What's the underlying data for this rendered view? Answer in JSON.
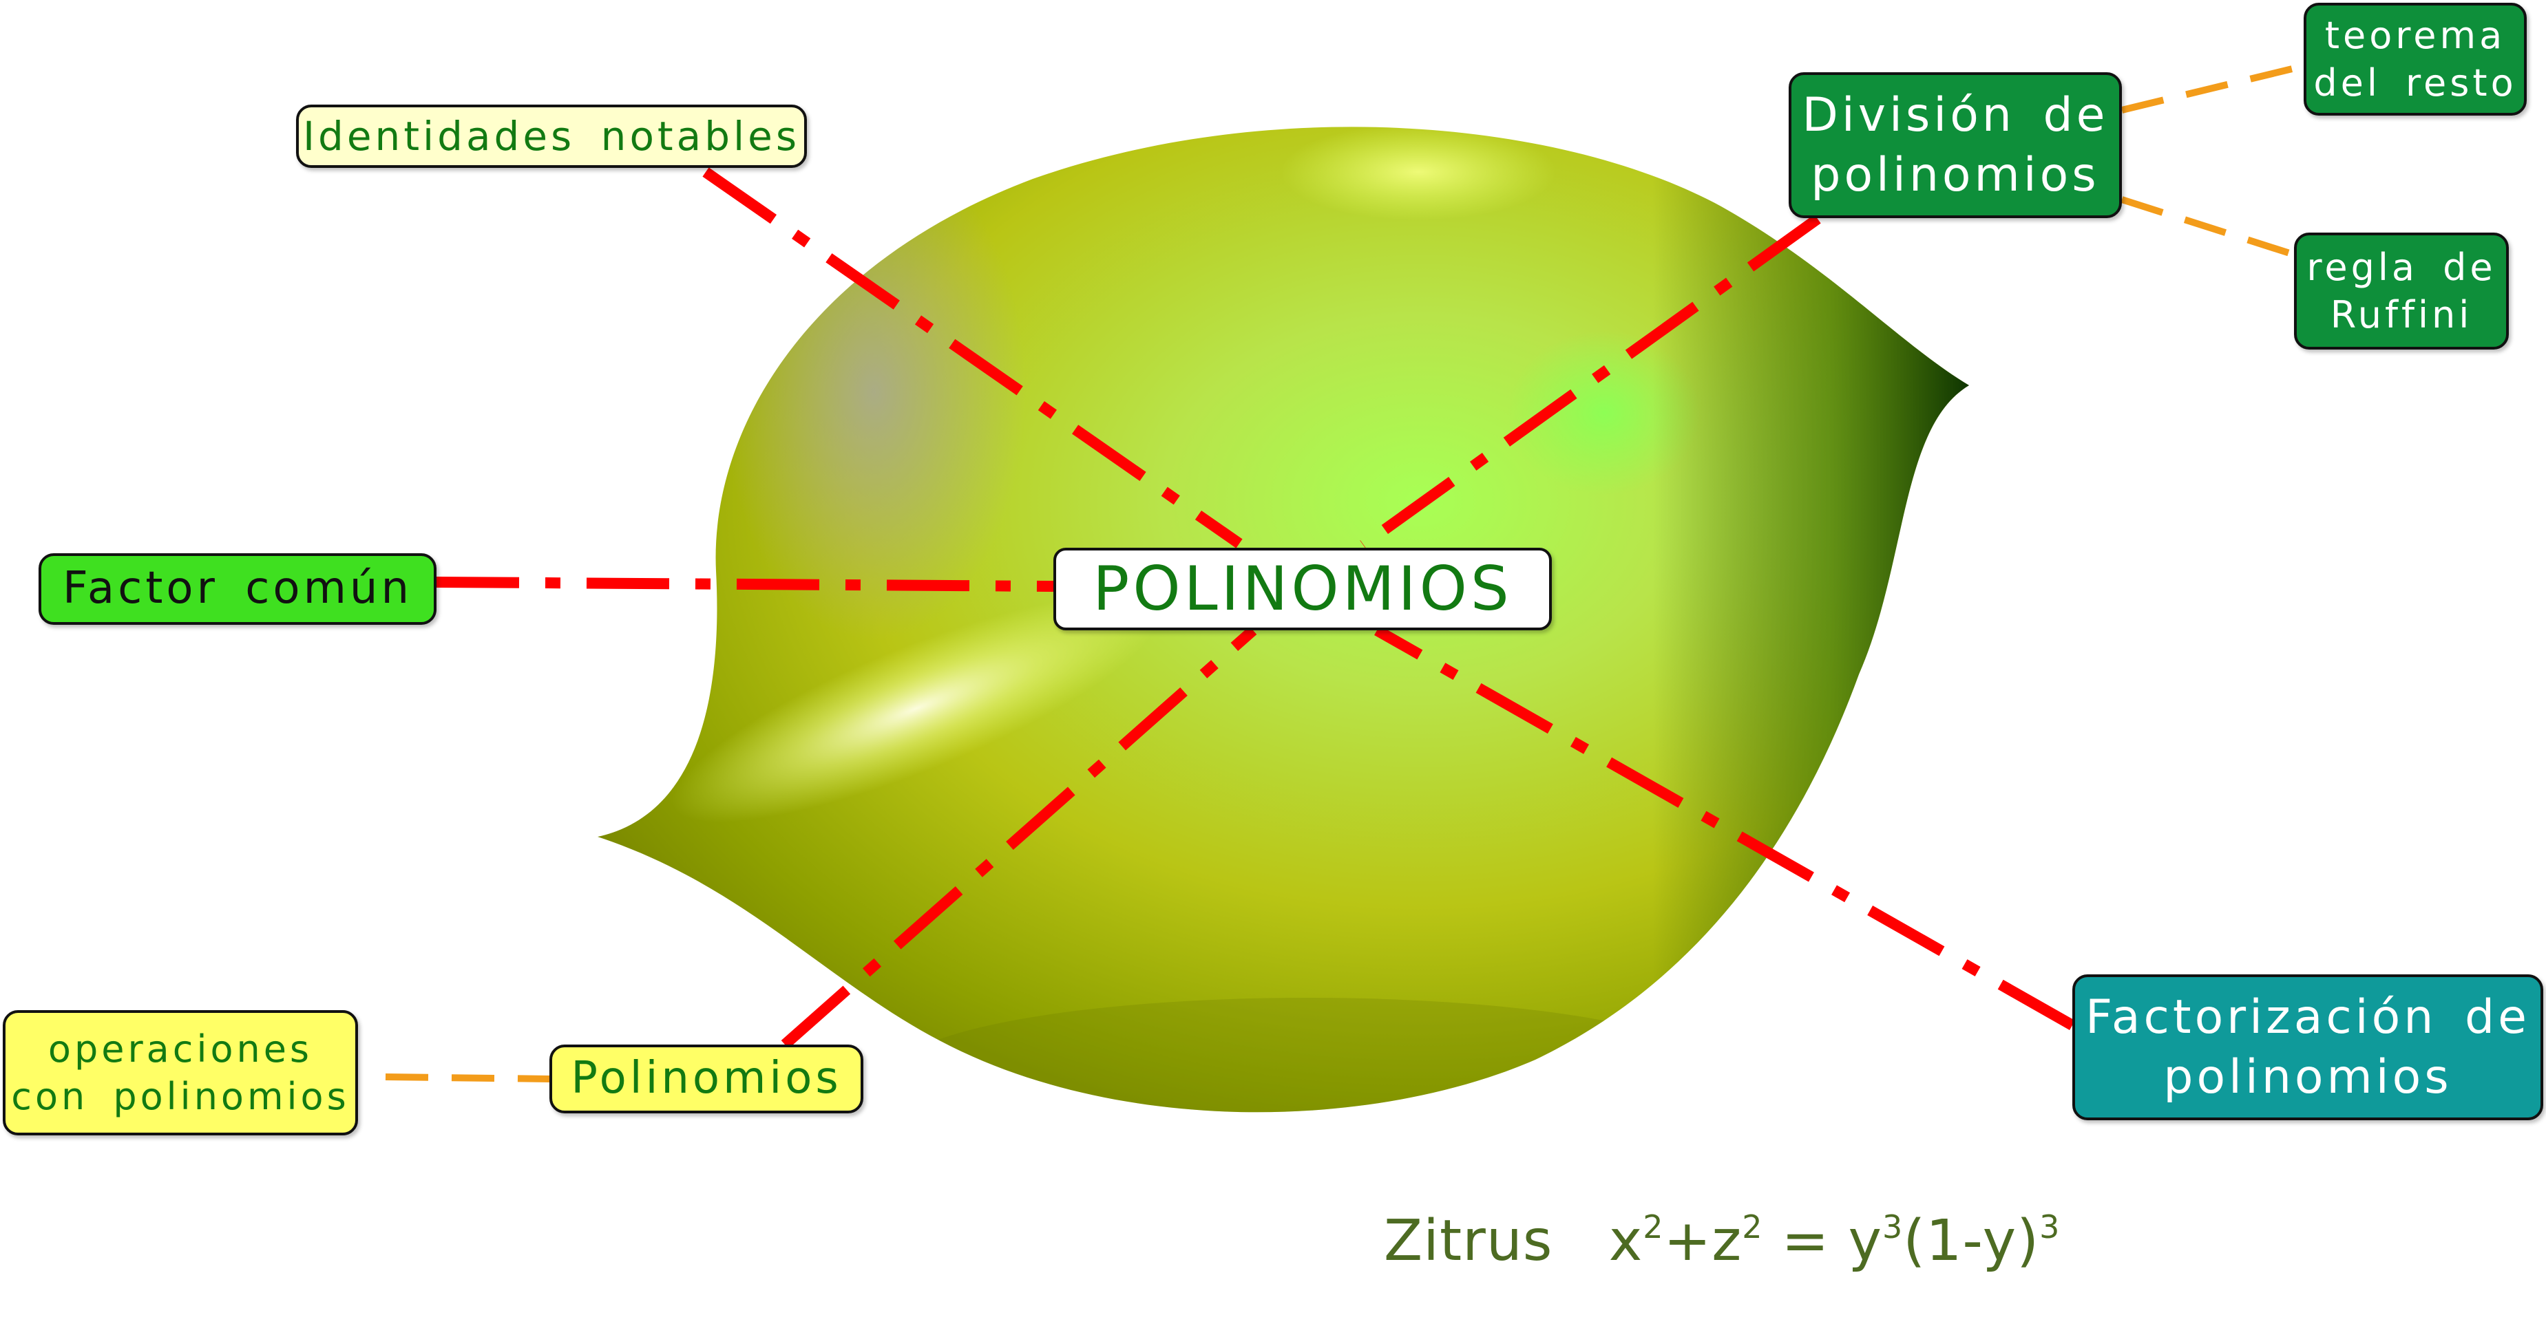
{
  "colors": {
    "connector_main": "#ff0000",
    "connector_sub": "#f39c1a",
    "node_border": "#111111",
    "caption": "#4d6b22"
  },
  "center": {
    "label": "POLINOMIOS",
    "fill": "#ffffff",
    "text_color": "#127a12"
  },
  "branches": {
    "identidades": {
      "lines": [
        "Identidades notables"
      ],
      "fill": "#ffffcc",
      "text_color": "#127a12"
    },
    "division": {
      "lines": [
        "División de",
        "polinomios"
      ],
      "fill": "#0e8f3a",
      "text_color": "#ffffff"
    },
    "factor": {
      "lines": [
        "Factor común"
      ],
      "fill": "#3fe020",
      "text_color": "#111111"
    },
    "polinomios": {
      "lines": [
        "Polinomios"
      ],
      "fill": "#ffff66",
      "text_color": "#127a12"
    },
    "factorizacion": {
      "lines": [
        "Factorización de",
        "polinomios"
      ],
      "fill": "#0f9a9a",
      "text_color": "#ffffff"
    }
  },
  "subtopics": {
    "teorema": {
      "lines": [
        "teorema",
        "del resto"
      ],
      "fill": "#0e8f3a",
      "text_color": "#ffffff"
    },
    "regla": {
      "lines": [
        "regla de",
        "Ruffini"
      ],
      "fill": "#0e8f3a",
      "text_color": "#ffffff"
    },
    "operaciones": {
      "lines": [
        "operaciones",
        "con polinomios"
      ],
      "fill": "#ffff66",
      "text_color": "#127a12"
    }
  },
  "caption": {
    "name": "Zitrus",
    "x_term": "x",
    "plus": "+",
    "z_term": "z",
    "equals": "=",
    "y_term": "y",
    "paren_open": "(1-y)",
    "sq": "2",
    "cube": "3"
  },
  "background_image": {
    "description_icon": "zitrus-surface-shape"
  }
}
